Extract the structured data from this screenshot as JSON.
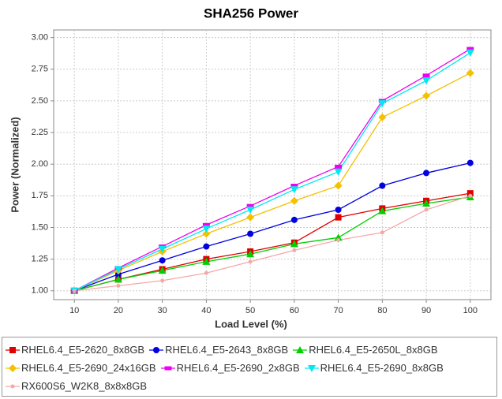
{
  "chart_data": {
    "type": "line",
    "title": "SHA256 Power",
    "x_label": "Load Level (%)",
    "y_label": "Power (Normalized)",
    "x": [
      10,
      20,
      30,
      40,
      50,
      60,
      70,
      80,
      90,
      100
    ],
    "xlim": [
      5.3,
      104.7
    ],
    "xticks": [
      10,
      20,
      30,
      40,
      50,
      60,
      70,
      80,
      90,
      100
    ],
    "ylim": [
      0.93,
      3.06
    ],
    "yticks": [
      {
        "value": 1,
        "label": "1.00"
      },
      {
        "value": 1.25,
        "label": "1.25"
      },
      {
        "value": 1.5,
        "label": "1.50"
      },
      {
        "value": 1.75,
        "label": "1.75"
      },
      {
        "value": 2,
        "label": "2.00"
      },
      {
        "value": 2.25,
        "label": "2.25"
      },
      {
        "value": 2.5,
        "label": "2.50"
      },
      {
        "value": 2.75,
        "label": "2.75"
      },
      {
        "value": 3,
        "label": "3.00"
      }
    ],
    "grid": true,
    "legend": "bottom",
    "series": [
      {
        "name": "RHEL6.4_E5-2620_8x8GB",
        "color": "#e00000",
        "marker": "square",
        "values": [
          1.0,
          1.09,
          1.17,
          1.25,
          1.31,
          1.38,
          1.58,
          1.65,
          1.71,
          1.77
        ]
      },
      {
        "name": "RHEL6.4_E5-2643_8x8GB",
        "color": "#0000e0",
        "marker": "circle",
        "values": [
          1.0,
          1.13,
          1.24,
          1.35,
          1.45,
          1.56,
          1.64,
          1.83,
          1.93,
          2.01
        ]
      },
      {
        "name": "RHEL6.4_E5-2650L_8x8GB",
        "color": "#00d000",
        "marker": "triangle-up",
        "values": [
          1.0,
          1.09,
          1.16,
          1.23,
          1.29,
          1.37,
          1.42,
          1.63,
          1.69,
          1.74
        ]
      },
      {
        "name": "RHEL6.4_E5-2690_24x16GB",
        "color": "#f5c000",
        "marker": "diamond",
        "values": [
          1.0,
          1.16,
          1.31,
          1.45,
          1.58,
          1.71,
          1.83,
          2.37,
          2.54,
          2.72
        ]
      },
      {
        "name": "RHEL6.4_E5-2690_2x8GB",
        "color": "#f000f0",
        "marker": "bar",
        "values": [
          1.0,
          1.18,
          1.35,
          1.52,
          1.67,
          1.83,
          1.98,
          2.5,
          2.7,
          2.91
        ]
      },
      {
        "name": "RHEL6.4_E5-2690_8x8GB",
        "color": "#00e8f0",
        "marker": "triangle-down",
        "values": [
          1.0,
          1.17,
          1.33,
          1.49,
          1.64,
          1.8,
          1.94,
          2.48,
          2.66,
          2.88
        ]
      },
      {
        "name": "RX600S6_W2K8_8x8x8GB",
        "color": "#f5a8a8",
        "marker": "dot",
        "values": [
          1.0,
          1.04,
          1.08,
          1.14,
          1.23,
          1.32,
          1.4,
          1.46,
          1.64,
          1.75
        ]
      }
    ]
  }
}
